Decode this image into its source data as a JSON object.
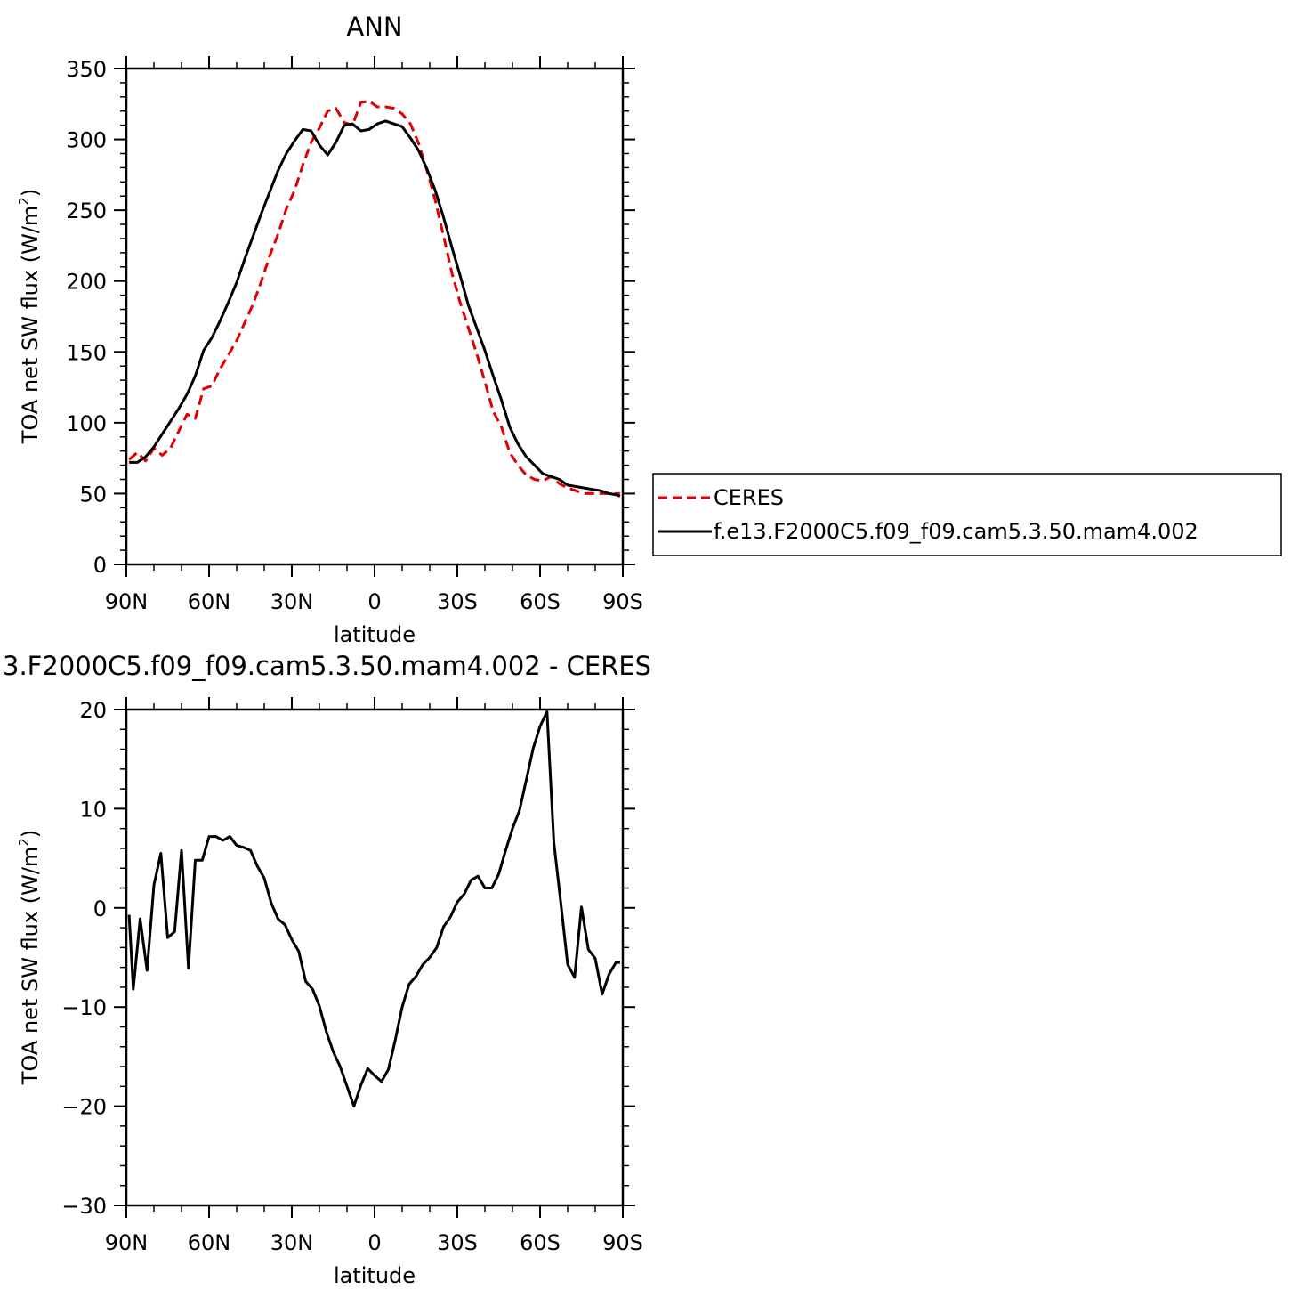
{
  "chart_data": [
    {
      "type": "line",
      "title": "ANN",
      "xlabel": "latitude",
      "ylabel_main": "TOA net SW flux (W/m",
      "ylabel_sup": "2",
      "ylabel_close": ")",
      "xlim": [
        90,
        -90
      ],
      "ylim": [
        0,
        350
      ],
      "yticks": [
        0,
        50,
        100,
        150,
        200,
        250,
        300,
        350
      ],
      "xticks": [
        90,
        60,
        30,
        0,
        -30,
        -60,
        -90
      ],
      "xticklabels": [
        "90N",
        "60N",
        "30N",
        "0",
        "30S",
        "60S",
        "90S"
      ],
      "legend": {
        "placement": "right",
        "entries": [
          {
            "label": "CERES",
            "color": "#e00000",
            "dash": true
          },
          {
            "label": "f.e13.F2000C5.f09_f09.cam5.3.50.mam4.002",
            "color": "#000000",
            "dash": false
          }
        ]
      },
      "series": [
        {
          "name": "CERES",
          "color": "#e00000",
          "dash": true,
          "x": [
            89,
            86,
            83,
            80,
            77,
            74,
            71,
            68,
            65,
            62,
            59,
            56,
            53,
            50,
            47,
            44,
            41,
            38,
            35,
            32,
            29,
            26,
            23,
            20,
            17,
            14,
            11,
            8,
            5,
            2,
            -1,
            -4,
            -7,
            -10,
            -13,
            -16,
            -19,
            -22,
            -25,
            -28,
            -31,
            -34,
            -37,
            -40,
            -43,
            -46,
            -49,
            -52,
            -55,
            -58,
            -61,
            -64,
            -67,
            -70,
            -73,
            -76,
            -79,
            -82,
            -85,
            -88,
            -89
          ],
          "y": [
            74,
            79,
            73,
            82,
            77,
            82,
            94,
            106,
            103,
            124,
            126,
            138,
            148,
            158,
            171,
            184,
            200,
            218,
            233,
            251,
            264,
            282,
            298,
            308,
            320,
            322,
            312,
            310,
            326,
            327,
            323,
            323,
            322,
            318,
            311,
            297,
            278,
            257,
            232,
            206,
            185,
            167,
            149,
            129,
            108,
            97,
            79,
            70,
            63,
            60,
            59,
            62,
            57,
            54,
            52,
            50,
            50,
            50,
            50,
            50,
            50
          ]
        },
        {
          "name": "f.e13.F2000C5.f09_f09.cam5.3.50.mam4.002",
          "color": "#000000",
          "dash": false,
          "x": [
            89,
            86,
            83,
            80,
            77,
            74,
            71,
            68,
            65,
            62,
            59,
            56,
            53,
            50,
            47,
            44,
            41,
            38,
            35,
            32,
            29,
            26,
            23,
            20,
            17,
            14,
            11,
            8,
            5,
            2,
            -1,
            -4,
            -7,
            -10,
            -13,
            -16,
            -19,
            -22,
            -25,
            -28,
            -31,
            -34,
            -37,
            -40,
            -43,
            -46,
            -49,
            -52,
            -55,
            -58,
            -61,
            -64,
            -67,
            -70,
            -73,
            -76,
            -79,
            -82,
            -85,
            -88,
            -89
          ],
          "y": [
            72,
            72,
            76,
            83,
            92,
            101,
            110,
            120,
            133,
            151,
            160,
            172,
            185,
            199,
            216,
            232,
            248,
            263,
            278,
            290,
            299,
            307,
            306,
            296,
            289,
            298,
            310,
            311,
            306,
            307,
            311,
            313,
            311,
            309,
            301,
            292,
            279,
            264,
            245,
            224,
            204,
            183,
            167,
            151,
            133,
            116,
            97,
            85,
            76,
            70,
            64,
            62,
            60,
            56,
            55,
            54,
            53,
            52,
            50,
            49,
            48
          ]
        }
      ]
    },
    {
      "type": "line",
      "title": "3.F2000C5.f09_f09.cam5.3.50.mam4.002  -  CERES",
      "xlabel": "latitude",
      "ylabel_main": "TOA net SW flux (W/m",
      "ylabel_sup": "2",
      "ylabel_close": ")",
      "xlim": [
        90,
        -90
      ],
      "ylim": [
        -30,
        20
      ],
      "yticks": [
        -30,
        -20,
        -10,
        0,
        10,
        20
      ],
      "yticklabels": [
        "−30",
        "−20",
        "−10",
        "0",
        "10",
        "20"
      ],
      "xticks": [
        90,
        60,
        30,
        0,
        -30,
        -60,
        -90
      ],
      "xticklabels": [
        "90N",
        "60N",
        "30N",
        "0",
        "30S",
        "60S",
        "90S"
      ],
      "series": [
        {
          "color": "#000000",
          "dash": false,
          "x": [
            89,
            87.5,
            85,
            82.5,
            80,
            77.5,
            75,
            72.5,
            70,
            67.5,
            65,
            62.5,
            60,
            57.5,
            55,
            52.5,
            50,
            47.5,
            45,
            42.5,
            40,
            37.5,
            35,
            32.5,
            30,
            27.5,
            25,
            22.5,
            20,
            17.5,
            15,
            12.5,
            10,
            7.5,
            5,
            2.5,
            0,
            -2.5,
            -5,
            -7.5,
            -10,
            -12.5,
            -15,
            -17.5,
            -20,
            -22.5,
            -25,
            -27.5,
            -30,
            -32.5,
            -35,
            -37.5,
            -40,
            -42.5,
            -45,
            -47.5,
            -50,
            -52.5,
            -55,
            -57.5,
            -60,
            -62.5,
            -65,
            -67.5,
            -70,
            -72.5,
            -75,
            -77.5,
            -80,
            -82.5,
            -85,
            -87.5,
            -89
          ],
          "y": [
            -0.7,
            -8.2,
            -1.1,
            -6.3,
            2.3,
            5.5,
            -3.0,
            -2.4,
            5.8,
            -6.1,
            4.8,
            4.8,
            7.2,
            7.2,
            6.8,
            7.2,
            6.3,
            6.1,
            5.8,
            4.2,
            3.0,
            0.5,
            -1.1,
            -1.7,
            -3.2,
            -4.4,
            -7.4,
            -8.2,
            -9.9,
            -12.5,
            -14.5,
            -16.0,
            -18.0,
            -20.0,
            -17.9,
            -16.2,
            -16.9,
            -17.5,
            -16.3,
            -13.3,
            -10.0,
            -7.7,
            -6.9,
            -5.7,
            -5.0,
            -4.0,
            -1.9,
            -0.9,
            0.6,
            1.4,
            2.8,
            3.2,
            2.0,
            2.0,
            3.4,
            5.8,
            8.0,
            9.8,
            12.9,
            16.1,
            18.3,
            19.8,
            6.6,
            0.5,
            -5.7,
            -7.0,
            0.1,
            -4.2,
            -5.1,
            -8.7,
            -6.7,
            -5.5,
            -5.5
          ]
        }
      ]
    }
  ]
}
